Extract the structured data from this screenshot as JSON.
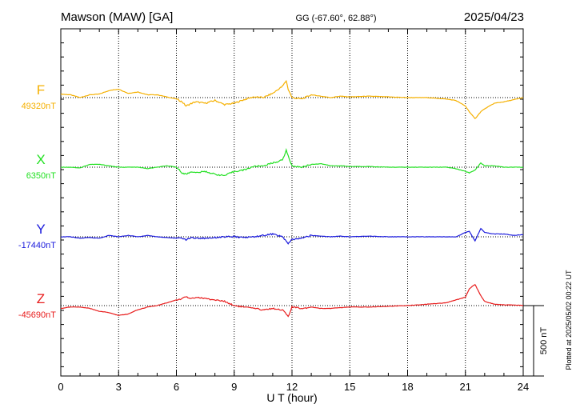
{
  "station_title": "Mawson (MAW)  [GA]",
  "coords": "GG (-67.60°,  62.88°)",
  "date": "2025/04/23",
  "plotted_note": "Plotted at 2025/05/02 00:22 UT",
  "scale_label": "500 nT",
  "chart_data": {
    "type": "line",
    "title": "Mawson (MAW)  [GA]",
    "xlabel": "U T (hour)",
    "ylabel": "",
    "xlim": [
      0,
      24
    ],
    "x_ticks": [
      0,
      3,
      6,
      9,
      12,
      15,
      18,
      21,
      24
    ],
    "x_tick_labels": [
      "0",
      "3",
      "6",
      "9",
      "12",
      "15",
      "18",
      "21",
      "24"
    ],
    "grid": true,
    "scale_bar_nT": 500,
    "series": [
      {
        "name": "F",
        "baseline_label": "49320nT",
        "color": "#f5b000",
        "x": [
          0,
          0.5,
          1,
          1.5,
          2,
          2.5,
          3,
          3.5,
          4,
          4.5,
          5,
          5.5,
          6,
          6.3,
          6.5,
          6.8,
          7,
          7.5,
          8,
          8.5,
          9,
          9.5,
          10,
          10.5,
          11,
          11.5,
          11.7,
          11.8,
          12,
          12.5,
          13,
          13.5,
          14,
          14.5,
          15,
          16,
          17,
          18,
          19,
          20,
          20.5,
          21,
          21.2,
          21.5,
          21.8,
          22,
          22.5,
          23,
          23.5,
          24
        ],
        "values": [
          25,
          20,
          0,
          20,
          25,
          50,
          60,
          30,
          40,
          20,
          20,
          5,
          -10,
          -30,
          -60,
          -40,
          -30,
          -40,
          -20,
          -50,
          -40,
          -15,
          5,
          0,
          30,
          80,
          120,
          60,
          0,
          -10,
          20,
          10,
          0,
          10,
          5,
          10,
          5,
          0,
          0,
          -10,
          -20,
          -60,
          -100,
          -150,
          -100,
          -80,
          -40,
          -30,
          -15,
          0
        ]
      },
      {
        "name": "X",
        "baseline_label": "6350nT",
        "color": "#22e022",
        "x": [
          0,
          0.5,
          1,
          1.5,
          2,
          2.5,
          3,
          3.5,
          4,
          4.5,
          5,
          5.5,
          6,
          6.3,
          6.5,
          6.8,
          7,
          7.5,
          8,
          8.5,
          9,
          9.5,
          10,
          10.5,
          11,
          11.5,
          11.7,
          11.8,
          12,
          12.5,
          13,
          13.5,
          14,
          14.5,
          15,
          16,
          17,
          18,
          19,
          20,
          20.5,
          21,
          21.2,
          21.5,
          21.8,
          22,
          22.5,
          23,
          23.5,
          24
        ],
        "values": [
          0,
          0,
          -5,
          20,
          20,
          10,
          0,
          0,
          0,
          -10,
          0,
          10,
          0,
          -40,
          -50,
          -30,
          -40,
          -30,
          -50,
          -60,
          -30,
          -20,
          5,
          10,
          30,
          50,
          120,
          80,
          10,
          0,
          20,
          25,
          10,
          10,
          5,
          5,
          0,
          0,
          0,
          0,
          -10,
          -30,
          -40,
          -20,
          30,
          10,
          10,
          0,
          0,
          0
        ]
      },
      {
        "name": "Y",
        "baseline_label": "-17440nT",
        "color": "#1a1adc",
        "x": [
          0,
          0.5,
          1,
          1.5,
          2,
          2.5,
          3,
          3.5,
          4,
          4.5,
          5,
          5.5,
          6,
          6.3,
          6.5,
          6.8,
          7,
          7.5,
          8,
          8.5,
          9,
          9.5,
          10,
          10.5,
          11,
          11.5,
          11.7,
          11.8,
          12,
          12.5,
          13,
          13.5,
          14,
          14.5,
          15,
          16,
          17,
          18,
          19,
          20,
          20.5,
          21,
          21.2,
          21.5,
          21.8,
          22,
          22.5,
          23,
          23.5,
          24
        ],
        "values": [
          0,
          0,
          -10,
          -5,
          -10,
          10,
          0,
          10,
          0,
          10,
          0,
          -5,
          -10,
          -10,
          -20,
          -5,
          -10,
          -10,
          -5,
          0,
          0,
          -5,
          0,
          10,
          20,
          0,
          -30,
          -50,
          -20,
          -10,
          10,
          5,
          0,
          5,
          0,
          5,
          0,
          0,
          0,
          0,
          0,
          30,
          40,
          -30,
          60,
          30,
          20,
          20,
          10,
          15
        ]
      },
      {
        "name": "Z",
        "baseline_label": "-45690nT",
        "color": "#e81c1c",
        "x": [
          0,
          0.5,
          1,
          1.5,
          2,
          2.5,
          3,
          3.5,
          4,
          4.5,
          5,
          5.5,
          6,
          6.3,
          6.5,
          6.8,
          7,
          7.5,
          8,
          8.5,
          9,
          9.5,
          10,
          10.5,
          11,
          11.5,
          11.7,
          11.8,
          12,
          12.5,
          13,
          13.5,
          14,
          14.5,
          15,
          16,
          17,
          18,
          19,
          20,
          20.5,
          21,
          21.2,
          21.5,
          21.8,
          22,
          22.5,
          23,
          23.5,
          24
        ],
        "values": [
          -20,
          -10,
          -10,
          -20,
          -40,
          -50,
          -70,
          -60,
          -30,
          -10,
          0,
          20,
          40,
          50,
          60,
          50,
          60,
          50,
          40,
          30,
          0,
          -10,
          -20,
          -30,
          -20,
          -30,
          -60,
          -80,
          -10,
          -20,
          -10,
          -20,
          -20,
          -15,
          -10,
          -10,
          -5,
          0,
          10,
          20,
          40,
          60,
          120,
          150,
          70,
          30,
          10,
          5,
          5,
          0
        ]
      }
    ]
  }
}
